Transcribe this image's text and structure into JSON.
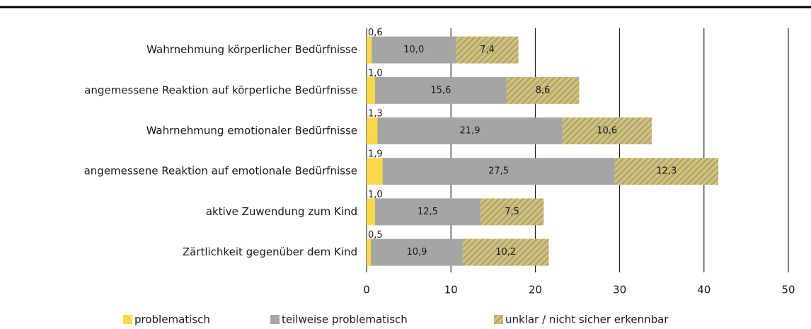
{
  "chart_data": {
    "type": "stacked-bar-horizontal",
    "categories": [
      "Wahrnehmung körperlicher Bedürfnisse",
      "angemessene Reaktion auf körperliche Bedürfnisse",
      "Wahrnehmung emotionaler Bedürfnisse",
      "angemessene Reaktion auf emotionale Bedürfnisse",
      "aktive Zuwendung zum Kind",
      "Zärtlichkeit gegenüber dem Kind"
    ],
    "series": [
      {
        "name": "problematisch",
        "color": "#f9d84a",
        "values": [
          0.6,
          1.0,
          1.3,
          1.9,
          1.0,
          0.5
        ],
        "value_labels": [
          "0,6",
          "1,0",
          "1,3",
          "1,9",
          "1,0",
          "0,5"
        ]
      },
      {
        "name": "teilweise problematisch",
        "color": "#a3a6a2",
        "values": [
          10.0,
          15.6,
          21.9,
          27.5,
          12.5,
          10.9
        ],
        "value_labels": [
          "10,0",
          "15,6",
          "21,9",
          "27,5",
          "12,5",
          "10,9"
        ]
      },
      {
        "name": "unklar / nicht sicher erkennbar",
        "color": "#e3c64c",
        "hatch": true,
        "values": [
          7.4,
          8.6,
          10.6,
          12.3,
          7.5,
          10.2
        ],
        "value_labels": [
          "7,4",
          "8,6",
          "10,6",
          "12,3",
          "7,5",
          "10,2"
        ]
      }
    ],
    "xlim": [
      0,
      50
    ],
    "xticks": [
      0,
      10,
      20,
      30,
      40,
      50
    ],
    "grid": true
  }
}
